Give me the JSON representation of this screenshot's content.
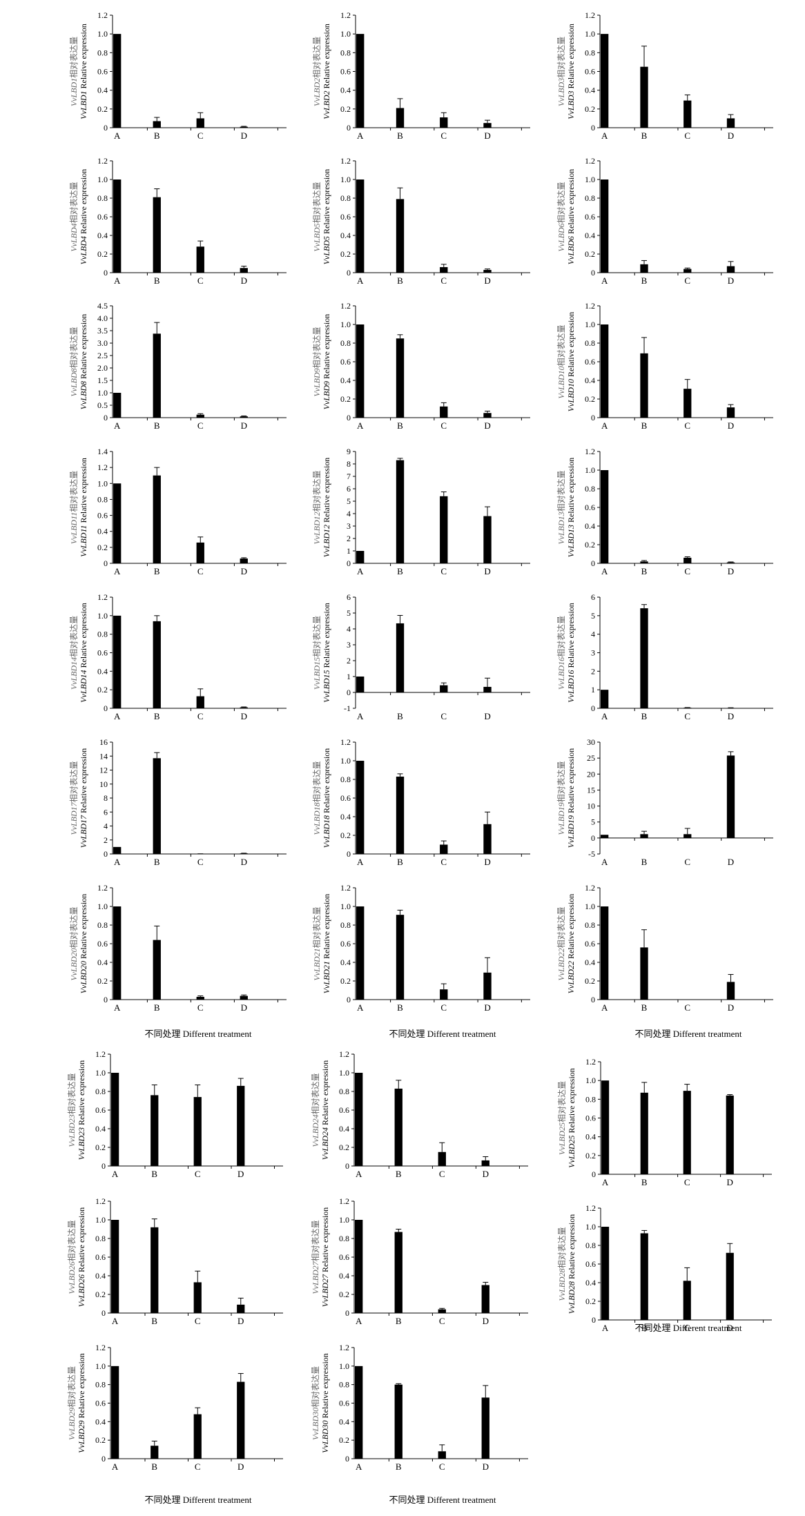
{
  "categories": [
    "A",
    "B",
    "C",
    "D"
  ],
  "colors": {
    "bar": "#000000",
    "axis": "#000000",
    "cn_label": "#666666",
    "en_label": "#000000"
  },
  "x_axis_caption": "不同处理 Different treatment",
  "ylabel_cn_suffix": "相对表达量",
  "ylabel_en_suffix": "Relative expression",
  "chart_data": [
    {
      "type": "bar",
      "gene": "VvLBD1",
      "ylabel": "VvLBD1 Relative expression",
      "categories": [
        "A",
        "B",
        "C",
        "D"
      ],
      "values": [
        1.0,
        0.07,
        0.1,
        0.01
      ],
      "errors": [
        0,
        0.04,
        0.06,
        0.005
      ],
      "ylim": [
        0,
        1.2
      ],
      "yticks": [
        "0",
        "0.2",
        "0.4",
        "0.6",
        "0.8",
        "1.0",
        "1.2"
      ]
    },
    {
      "type": "bar",
      "gene": "VvLBD2",
      "ylabel": "VvLBD2 Relative expression",
      "categories": [
        "A",
        "B",
        "C",
        "D"
      ],
      "values": [
        1.0,
        0.21,
        0.11,
        0.05
      ],
      "errors": [
        0,
        0.1,
        0.05,
        0.03
      ],
      "ylim": [
        0,
        1.2
      ],
      "yticks": [
        "0",
        "0.2",
        "0.4",
        "0.6",
        "0.8",
        "1.0",
        "1.2"
      ]
    },
    {
      "type": "bar",
      "gene": "VvLBD3",
      "ylabel": "VvLBD3 Relative expression",
      "categories": [
        "A",
        "B",
        "C",
        "D"
      ],
      "values": [
        1.0,
        0.65,
        0.29,
        0.1
      ],
      "errors": [
        0,
        0.22,
        0.06,
        0.04
      ],
      "ylim": [
        0,
        1.2
      ],
      "yticks": [
        "0",
        "0.2",
        "0.4",
        "0.6",
        "0.8",
        "1.0",
        "1.2"
      ]
    },
    {
      "type": "bar",
      "gene": "VvLBD4",
      "ylabel": "VvLBD4 Relative expression",
      "categories": [
        "A",
        "B",
        "C",
        "D"
      ],
      "values": [
        1.0,
        0.81,
        0.28,
        0.05
      ],
      "errors": [
        0,
        0.09,
        0.06,
        0.02
      ],
      "ylim": [
        0,
        1.2
      ],
      "yticks": [
        "0",
        "0.2",
        "0.4",
        "0.6",
        "0.8",
        "1.0",
        "1.2"
      ]
    },
    {
      "type": "bar",
      "gene": "VvLBD5",
      "ylabel": "VvLBD5 Relative expression",
      "categories": [
        "A",
        "B",
        "C",
        "D"
      ],
      "values": [
        1.0,
        0.79,
        0.06,
        0.03
      ],
      "errors": [
        0,
        0.12,
        0.03,
        0.01
      ],
      "ylim": [
        0,
        1.2
      ],
      "yticks": [
        "0",
        "0.2",
        "0.4",
        "0.6",
        "0.8",
        "1.0",
        "1.2"
      ]
    },
    {
      "type": "bar",
      "gene": "VvLBD6",
      "ylabel": "VvLBD6 Relative expression",
      "categories": [
        "A",
        "B",
        "C",
        "D"
      ],
      "values": [
        1.0,
        0.09,
        0.04,
        0.07
      ],
      "errors": [
        0,
        0.04,
        0.01,
        0.05
      ],
      "ylim": [
        0,
        1.2
      ],
      "yticks": [
        "0",
        "0.2",
        "0.4",
        "0.6",
        "0.8",
        "1.0",
        "1.2"
      ]
    },
    {
      "type": "bar",
      "gene": "VvLBD8",
      "ylabel": "VvLBD8 Relative expression",
      "categories": [
        "A",
        "B",
        "C",
        "D"
      ],
      "values": [
        1.0,
        3.38,
        0.12,
        0.05
      ],
      "errors": [
        0,
        0.45,
        0.04,
        0.02
      ],
      "ylim": [
        0,
        4.5
      ],
      "yticks": [
        "0",
        "0.5",
        "1.0",
        "1.5",
        "2.0",
        "2.5",
        "3.0",
        "3.5",
        "4.0",
        "4.5"
      ]
    },
    {
      "type": "bar",
      "gene": "VvLBD9",
      "ylabel": "VvLBD9 Relative expression",
      "categories": [
        "A",
        "B",
        "C",
        "D"
      ],
      "values": [
        1.0,
        0.85,
        0.12,
        0.05
      ],
      "errors": [
        0,
        0.04,
        0.04,
        0.02
      ],
      "ylim": [
        0,
        1.2
      ],
      "yticks": [
        "0",
        "0.2",
        "0.4",
        "0.6",
        "0.8",
        "1.0",
        "1.2"
      ]
    },
    {
      "type": "bar",
      "gene": "VvLBD10",
      "ylabel": "VvLBD10 Relative expression",
      "categories": [
        "A",
        "B",
        "C",
        "D"
      ],
      "values": [
        1.0,
        0.69,
        0.31,
        0.11
      ],
      "errors": [
        0,
        0.17,
        0.1,
        0.03
      ],
      "ylim": [
        0,
        1.2
      ],
      "yticks": [
        "0",
        "0.2",
        "0.4",
        "0.6",
        "0.8",
        "1.0",
        "1.2"
      ]
    },
    {
      "type": "bar",
      "gene": "VvLBD11",
      "ylabel": "VvLBD11 Relative expression",
      "categories": [
        "A",
        "B",
        "C",
        "D"
      ],
      "values": [
        1.0,
        1.1,
        0.26,
        0.06
      ],
      "errors": [
        0,
        0.1,
        0.07,
        0.01
      ],
      "ylim": [
        0,
        1.4
      ],
      "yticks": [
        "0",
        "0.2",
        "0.4",
        "0.6",
        "0.8",
        "1.0",
        "1.2",
        "1.4"
      ]
    },
    {
      "type": "bar",
      "gene": "VvLBD12",
      "ylabel": "VvLBD12 Relative expression",
      "categories": [
        "A",
        "B",
        "C",
        "D"
      ],
      "values": [
        1.0,
        8.3,
        5.4,
        3.8
      ],
      "errors": [
        0,
        0.15,
        0.35,
        0.75
      ],
      "ylim": [
        0,
        9
      ],
      "yticks": [
        "0",
        "1",
        "2",
        "3",
        "4",
        "5",
        "6",
        "7",
        "8",
        "9"
      ]
    },
    {
      "type": "bar",
      "gene": "VvLBD13",
      "ylabel": "VvLBD13 Relative expression",
      "categories": [
        "A",
        "B",
        "C",
        "D"
      ],
      "values": [
        1.0,
        0.02,
        0.06,
        0.01
      ],
      "errors": [
        0,
        0.01,
        0.01,
        0.005
      ],
      "ylim": [
        0,
        1.2
      ],
      "yticks": [
        "0",
        "0.2",
        "0.4",
        "0.6",
        "0.8",
        "1.0",
        "1.2"
      ]
    },
    {
      "type": "bar",
      "gene": "VvLBD14",
      "ylabel": "VvLBD14 Relative expression",
      "categories": [
        "A",
        "B",
        "C",
        "D"
      ],
      "values": [
        1.0,
        0.94,
        0.13,
        0.01
      ],
      "errors": [
        0,
        0.06,
        0.08,
        0.005
      ],
      "ylim": [
        0,
        1.2
      ],
      "yticks": [
        "0",
        "0.2",
        "0.4",
        "0.6",
        "0.8",
        "1.0",
        "1.2"
      ]
    },
    {
      "type": "bar",
      "gene": "VvLBD15",
      "ylabel": "VvLBD15 Relative expression",
      "categories": [
        "A",
        "B",
        "C",
        "D"
      ],
      "values": [
        1.0,
        4.35,
        0.45,
        0.35
      ],
      "errors": [
        0,
        0.5,
        0.15,
        0.55
      ],
      "ylim": [
        -1,
        6
      ],
      "yticks": [
        "-1",
        "0",
        "1",
        "2",
        "3",
        "4",
        "5",
        "6"
      ]
    },
    {
      "type": "bar",
      "gene": "VvLBD16",
      "ylabel": "VvLBD16 Relative expression",
      "categories": [
        "A",
        "B",
        "C",
        "D"
      ],
      "values": [
        1.0,
        5.4,
        0.03,
        0.02
      ],
      "errors": [
        0,
        0.2,
        0.01,
        0.01
      ],
      "ylim": [
        0,
        6
      ],
      "yticks": [
        "0",
        "1",
        "2",
        "3",
        "4",
        "5",
        "6"
      ]
    },
    {
      "type": "bar",
      "gene": "VvLBD17",
      "ylabel": "VvLBD17 Relative expression",
      "categories": [
        "A",
        "B",
        "C",
        "D"
      ],
      "values": [
        1.0,
        13.7,
        0.02,
        0.08
      ],
      "errors": [
        0,
        0.8,
        0.01,
        0.03
      ],
      "ylim": [
        0,
        16
      ],
      "yticks": [
        "0",
        "2",
        "4",
        "6",
        "8",
        "10",
        "12",
        "14",
        "16"
      ]
    },
    {
      "type": "bar",
      "gene": "VvLBD18",
      "ylabel": "VvLBD18 Relative expression",
      "categories": [
        "A",
        "B",
        "C",
        "D"
      ],
      "values": [
        1.0,
        0.83,
        0.1,
        0.32
      ],
      "errors": [
        0,
        0.03,
        0.04,
        0.13
      ],
      "ylim": [
        0,
        1.2
      ],
      "yticks": [
        "0",
        "0.2",
        "0.4",
        "0.6",
        "0.8",
        "1.0",
        "1.2"
      ]
    },
    {
      "type": "bar",
      "gene": "VvLBD19",
      "ylabel": "VvLBD19 Relative expression",
      "categories": [
        "A",
        "B",
        "C",
        "D"
      ],
      "values": [
        1.0,
        1.2,
        1.2,
        25.8
      ],
      "errors": [
        0,
        0.9,
        1.8,
        1.2
      ],
      "ylim": [
        -5,
        30
      ],
      "yticks": [
        "-5",
        "0",
        "5",
        "10",
        "15",
        "20",
        "25",
        "30"
      ]
    },
    {
      "type": "bar",
      "gene": "VvLBD20",
      "ylabel": "VvLBD20 Relative expression",
      "categories": [
        "A",
        "B",
        "C",
        "D"
      ],
      "values": [
        1.0,
        0.64,
        0.03,
        0.04
      ],
      "errors": [
        0,
        0.15,
        0.01,
        0.01
      ],
      "ylim": [
        0,
        1.2
      ],
      "yticks": [
        "0",
        "0.2",
        "0.4",
        "0.6",
        "0.8",
        "1.0",
        "1.2"
      ]
    },
    {
      "type": "bar",
      "gene": "VvLBD21",
      "ylabel": "VvLBD21 Relative expression",
      "categories": [
        "A",
        "B",
        "C",
        "D"
      ],
      "values": [
        1.0,
        0.91,
        0.11,
        0.29
      ],
      "errors": [
        0,
        0.05,
        0.06,
        0.16
      ],
      "ylim": [
        0,
        1.2
      ],
      "yticks": [
        "0",
        "0.2",
        "0.4",
        "0.6",
        "0.8",
        "1.0",
        "1.2"
      ]
    },
    {
      "type": "bar",
      "gene": "VvLBD22",
      "ylabel": "VvLBD22 Relative expression",
      "categories": [
        "A",
        "B",
        "C",
        "D"
      ],
      "values": [
        1.0,
        0.56,
        0.0,
        0.19
      ],
      "errors": [
        0,
        0.19,
        0,
        0.08
      ],
      "ylim": [
        0,
        1.2
      ],
      "yticks": [
        "0",
        "0.2",
        "0.4",
        "0.6",
        "0.8",
        "1.0",
        "1.2"
      ]
    },
    {
      "type": "bar",
      "gene": "VvLBD23",
      "ylabel": "VvLBD23 Relative expression",
      "categories": [
        "A",
        "B",
        "C",
        "D"
      ],
      "values": [
        1.0,
        0.76,
        0.74,
        0.86
      ],
      "errors": [
        0,
        0.11,
        0.13,
        0.08
      ],
      "ylim": [
        0,
        1.2
      ],
      "yticks": [
        "0",
        "0.2",
        "0.4",
        "0.6",
        "0.8",
        "1.0",
        "1.2"
      ]
    },
    {
      "type": "bar",
      "gene": "VvLBD24",
      "ylabel": "VvLBD24 Relative expression",
      "categories": [
        "A",
        "B",
        "C",
        "D"
      ],
      "values": [
        1.0,
        0.83,
        0.15,
        0.06
      ],
      "errors": [
        0,
        0.09,
        0.1,
        0.04
      ],
      "ylim": [
        0,
        1.2
      ],
      "yticks": [
        "0",
        "0.2",
        "0.4",
        "0.6",
        "0.8",
        "1.0",
        "1.2"
      ]
    },
    {
      "type": "bar",
      "gene": "VvLBD25",
      "ylabel": "VvLBD25 Relative expression",
      "categories": [
        "A",
        "B",
        "C",
        "D"
      ],
      "values": [
        1.0,
        0.87,
        0.89,
        0.84
      ],
      "errors": [
        0,
        0.11,
        0.07,
        0.01
      ],
      "ylim": [
        0,
        1.2
      ],
      "yticks": [
        "0",
        "0.2",
        "0.4",
        "0.6",
        "0.8",
        "1.0",
        "1.2"
      ]
    },
    {
      "type": "bar",
      "gene": "VvLBD26",
      "ylabel": "VvLBD26 Relative expression",
      "categories": [
        "A",
        "B",
        "C",
        "D"
      ],
      "values": [
        1.0,
        0.92,
        0.33,
        0.09
      ],
      "errors": [
        0,
        0.09,
        0.12,
        0.07
      ],
      "ylim": [
        0,
        1.2
      ],
      "yticks": [
        "0",
        "0.2",
        "0.4",
        "0.6",
        "0.8",
        "1.0",
        "1.2"
      ]
    },
    {
      "type": "bar",
      "gene": "VvLBD27",
      "ylabel": "VvLBD27 Relative expression",
      "categories": [
        "A",
        "B",
        "C",
        "D"
      ],
      "values": [
        1.0,
        0.87,
        0.04,
        0.3
      ],
      "errors": [
        0,
        0.03,
        0.01,
        0.03
      ],
      "ylim": [
        0,
        1.2
      ],
      "yticks": [
        "0",
        "0.2",
        "0.4",
        "0.6",
        "0.8",
        "1.0",
        "1.2"
      ]
    },
    {
      "type": "bar",
      "gene": "VvLBD28",
      "ylabel": "VvLBD28 Relative expression",
      "categories": [
        "A",
        "B",
        "C",
        "D"
      ],
      "values": [
        1.0,
        0.93,
        0.42,
        0.72
      ],
      "errors": [
        0,
        0.03,
        0.14,
        0.1
      ],
      "ylim": [
        0,
        1.2
      ],
      "yticks": [
        "0",
        "0.2",
        "0.4",
        "0.6",
        "0.8",
        "1.0",
        "1.2"
      ]
    },
    {
      "type": "bar",
      "gene": "VvLBD29",
      "ylabel": "VvLBD29 Relative expression",
      "categories": [
        "A",
        "B",
        "C",
        "D"
      ],
      "values": [
        1.0,
        0.14,
        0.48,
        0.83
      ],
      "errors": [
        0,
        0.05,
        0.07,
        0.09
      ],
      "ylim": [
        0,
        1.2
      ],
      "yticks": [
        "0",
        "0.2",
        "0.4",
        "0.6",
        "0.8",
        "1.0",
        "1.2"
      ]
    },
    {
      "type": "bar",
      "gene": "VvLBD30",
      "ylabel": "VvLBD30 Relative expression",
      "categories": [
        "A",
        "B",
        "C",
        "D"
      ],
      "values": [
        1.0,
        0.8,
        0.08,
        0.66
      ],
      "errors": [
        0,
        0.01,
        0.07,
        0.13
      ],
      "ylim": [
        0,
        1.2
      ],
      "yticks": [
        "0",
        "0.2",
        "0.4",
        "0.6",
        "0.8",
        "1.0",
        "1.2"
      ]
    }
  ]
}
